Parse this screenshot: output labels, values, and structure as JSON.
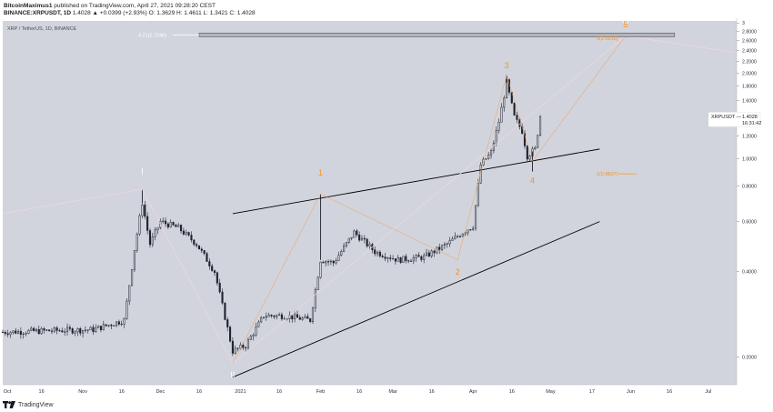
{
  "header": {
    "author": "BitcoinMaximus1",
    "published": "published on TradingView.com, April 27, 2021 09:28:20 CEST",
    "symbol": "BINANCE:XRPUSDT, 1D",
    "ohlc": "1.4028 ▲ +0.0399 (+2.93%) O: 1.3629 H: 1.4611 L: 1.3421 C: 1.4028"
  },
  "chart_title": "XRP / TetherUS, 1D, BINANCE",
  "footer": {
    "brand": "TradingView",
    "logo_icon": "tradingview-logo-icon"
  },
  "colors": {
    "background": "#d1d4dc",
    "candle": "#1e222d",
    "orange": "#f7931a",
    "label_white": "#ffffff",
    "fib_box": "#b2b5be",
    "axis_text": "#2a2e39"
  },
  "chart_data": {
    "type": "candlestick",
    "title": "XRP / TetherUS, 1D, BINANCE",
    "x_range": [
      "2020-10-01",
      "2021-07-12"
    ],
    "x_ticks": [
      "Oct",
      "16",
      "Nov",
      "16",
      "Dec",
      "16",
      "2021",
      "16",
      "Feb",
      "16",
      "Mar",
      "16",
      "Apr",
      "16",
      "May",
      "17",
      "Jun",
      "16",
      "Jul"
    ],
    "y_scale": "log",
    "y_range": [
      0.16,
      3.05
    ],
    "y_ticks": [
      "3",
      "2.8000",
      "2.6000",
      "2.4000",
      "2.2000",
      "2.0000",
      "1.8000",
      "1.6000",
      "1.4000",
      "1.2000",
      "1.0000",
      "0.8000",
      "0.6000",
      "0.4000",
      "0.2000"
    ],
    "y_tick_values": [
      3.0,
      2.8,
      2.6,
      2.4,
      2.2,
      2.0,
      1.8,
      1.6,
      1.4,
      1.2,
      1.0,
      0.8,
      0.6,
      0.4,
      0.2
    ],
    "last_price": {
      "label": "XRPUSDT",
      "value": "1.4028",
      "countdown": "16:31:42",
      "y": 1.4028
    },
    "path_points": [
      [
        "2020-10-01",
        0.245
      ],
      [
        "2020-10-20",
        0.248
      ],
      [
        "2020-11-05",
        0.25
      ],
      [
        "2020-11-17",
        0.27
      ],
      [
        "2020-11-21",
        0.48
      ],
      [
        "2020-11-24",
        0.7
      ],
      [
        "2020-11-27",
        0.5
      ],
      [
        "2020-12-01",
        0.6
      ],
      [
        "2020-12-08",
        0.57
      ],
      [
        "2020-12-15",
        0.5
      ],
      [
        "2020-12-22",
        0.4
      ],
      [
        "2020-12-29",
        0.21
      ],
      [
        "2021-01-03",
        0.22
      ],
      [
        "2021-01-10",
        0.28
      ],
      [
        "2021-01-18",
        0.28
      ],
      [
        "2021-01-28",
        0.27
      ],
      [
        "2021-02-01",
        0.44
      ],
      [
        "2021-02-06",
        0.43
      ],
      [
        "2021-02-14",
        0.55
      ],
      [
        "2021-02-22",
        0.47
      ],
      [
        "2021-03-03",
        0.44
      ],
      [
        "2021-03-13",
        0.45
      ],
      [
        "2021-03-22",
        0.5
      ],
      [
        "2021-03-28",
        0.55
      ],
      [
        "2021-04-01",
        0.58
      ],
      [
        "2021-04-04",
        0.95
      ],
      [
        "2021-04-08",
        1.05
      ],
      [
        "2021-04-11",
        1.35
      ],
      [
        "2021-04-14",
        1.85
      ],
      [
        "2021-04-17",
        1.4
      ],
      [
        "2021-04-20",
        1.25
      ],
      [
        "2021-04-22",
        1.02
      ],
      [
        "2021-04-25",
        1.08
      ],
      [
        "2021-04-27",
        1.4028
      ]
    ],
    "spikes": [
      {
        "x": "2020-11-24",
        "high": 0.78
      },
      {
        "x": "2021-02-01",
        "high": 0.75
      },
      {
        "x": "2021-04-14",
        "high": 1.97
      },
      {
        "x": "2021-04-24",
        "low": 0.9
      }
    ],
    "channel_lines": [
      {
        "from": [
          "2020-12-29",
          0.64
        ],
        "to": [
          "2021-05-20",
          1.08
        ]
      },
      {
        "from": [
          "2020-12-29",
          0.17
        ],
        "to": [
          "2021-05-20",
          0.6
        ]
      }
    ],
    "wave_path": [
      [
        "2020-12-29",
        0.19
      ],
      [
        "2021-02-01",
        0.75
      ],
      [
        "2021-03-26",
        0.44
      ],
      [
        "2021-04-14",
        1.97
      ],
      [
        "2021-04-24",
        0.98
      ],
      [
        "2021-05-30",
        2.7
      ]
    ],
    "macro_path": [
      [
        "2020-10-01",
        0.64
      ],
      [
        "2020-11-24",
        0.78
      ],
      [
        "2020-12-29",
        0.19
      ],
      [
        "2021-05-30",
        2.7
      ],
      [
        "2021-07-12",
        2.36
      ]
    ],
    "fib_levels": [
      {
        "label": "4.21(2.7240)",
        "y": 2.724,
        "box": [
          "2020-12-16",
          "2021-06-18"
        ]
      },
      {
        "label": "0(2.6916)",
        "y": 2.6916
      },
      {
        "label": "1(0.8837)",
        "y": 0.8837
      }
    ],
    "wave_labels": [
      {
        "text": "I",
        "x": "2020-11-24",
        "y": 0.88,
        "color": "white"
      },
      {
        "text": "II",
        "x": "2020-12-29",
        "y": 0.17,
        "color": "white"
      },
      {
        "text": "III",
        "x": "2021-05-30",
        "y": 3.0,
        "color": "white"
      },
      {
        "text": "1",
        "x": "2021-02-01",
        "y": 0.87,
        "color": "orange"
      },
      {
        "text": "2",
        "x": "2021-03-26",
        "y": 0.39,
        "color": "orange"
      },
      {
        "text": "3",
        "x": "2021-04-14",
        "y": 2.08,
        "color": "orange"
      },
      {
        "text": "4",
        "x": "2021-04-24",
        "y": 0.82,
        "color": "orange"
      },
      {
        "text": "5",
        "x": "2021-05-30",
        "y": 2.9,
        "color": "orange"
      }
    ]
  }
}
